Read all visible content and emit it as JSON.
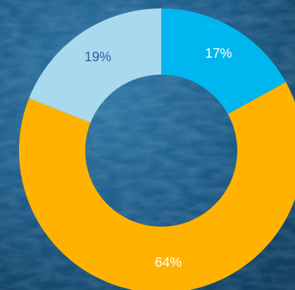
{
  "chart_data": {
    "type": "pie",
    "style": "donut",
    "slices": [
      {
        "label": "17%",
        "value": 17,
        "color": "#00B6EF",
        "label_color": "#FFFFFF"
      },
      {
        "label": "64%",
        "value": 64,
        "color": "#FFB300",
        "label_color": "#FFFFFF"
      },
      {
        "label": "19%",
        "value": 19,
        "color": "#A8D9EE",
        "label_color": "#2E5E9E"
      }
    ],
    "start_angle_deg": 0,
    "direction": "clockwise",
    "legend": "none"
  },
  "colors": {
    "background_dark": "#0E3F63",
    "background_light": "#2A6E9B"
  }
}
